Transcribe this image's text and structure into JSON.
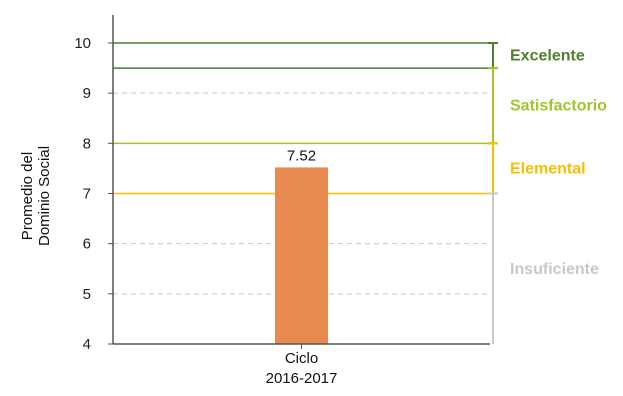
{
  "chart_data": {
    "type": "bar",
    "ylabel_lines": [
      "Promedio del",
      "Dominio Social"
    ],
    "categories": [
      [
        "Ciclo",
        "2016-2017"
      ]
    ],
    "values": [
      7.52
    ],
    "data_labels": [
      "7.52"
    ],
    "ylim": [
      4,
      10
    ],
    "yticks": [
      4,
      5,
      6,
      7,
      8,
      9,
      10
    ],
    "grid": true,
    "bar_color": "#E8894F",
    "levels": [
      {
        "label": "Excelente",
        "from": 9.5,
        "to": 10,
        "color": "#4E7F2E"
      },
      {
        "label": "Satisfactorio",
        "from": 8,
        "to": 9.5,
        "color": "#A3C42D"
      },
      {
        "label": "Elemental",
        "from": 7,
        "to": 8,
        "color": "#F5C000"
      },
      {
        "label": "Insuficiente",
        "from": 4,
        "to": 7,
        "color": "#C8C8C8"
      }
    ]
  }
}
